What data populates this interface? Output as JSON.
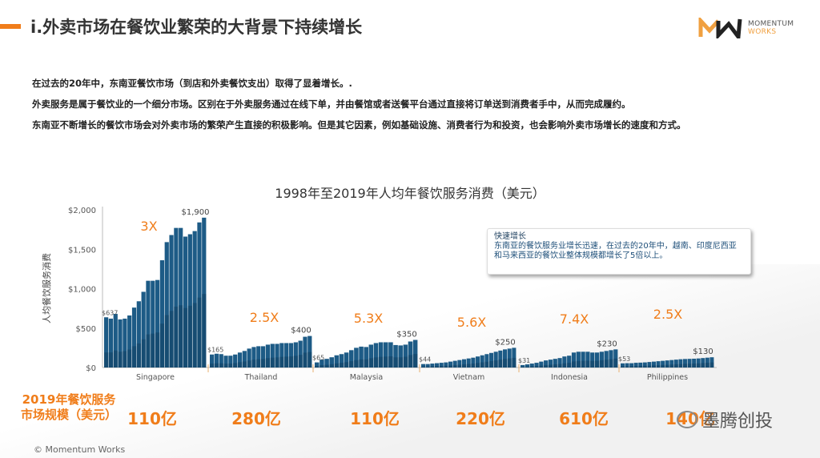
{
  "header": {
    "title": "i.外卖市场在餐饮业繁荣的大背景下持续增长",
    "logo_line1": "MOMENTUM",
    "logo_line2": "WORKS"
  },
  "intro": [
    "在过去的20年中，东南亚餐饮市场（到店和外卖餐饮支出）取得了显着增长。.",
    "外卖服务是属于餐饮业的一个细分市场。区别在于外卖服务通过在线下单，并由餐馆或者送餐平台通过直接将订单送到消费者手中，从而完成履约。",
    "东南亚不断增长的餐饮市场会对外卖市场的繁荣产生直接的积极影响。但是其它因素，例如基础设施、消费者行为和投资，也会影响外卖市场增长的速度和方式。"
  ],
  "callout": {
    "heading": "快速增长",
    "body": "东南亚的餐饮服务业增长迅速，在过去的20年中，越南、印度尼西亚和马来西亚的餐饮业整体规模都增长了5倍以上。"
  },
  "market": {
    "label": "2019年餐饮服务市场规模（美元）",
    "values": [
      "110亿",
      "280亿",
      "110亿",
      "220亿",
      "610亿",
      "140亿"
    ]
  },
  "copyright": "© Momentum Works",
  "watermark": "墨腾创投",
  "chart_data": {
    "type": "bar",
    "title": "1998年至2019年人均年餐饮服务消费（美元）",
    "ylabel": "人均餐饮服务消费",
    "ylim": [
      0,
      2000
    ],
    "yticks": [
      "$0",
      "$500",
      "$1,000",
      "$1,500",
      "$2,000"
    ],
    "ytick_values": [
      0,
      500,
      1000,
      1500,
      2000
    ],
    "bar_color": "#1d5b86",
    "growth_color": "#f07d1a",
    "groups": [
      {
        "category": "Singapore",
        "growth": "3X",
        "start_label": "$637",
        "end_label": "$1,900",
        "values": [
          637,
          620,
          680,
          610,
          620,
          660,
          760,
          840,
          960,
          1100,
          1100,
          1110,
          1360,
          1590,
          1680,
          1770,
          1770,
          1660,
          1690,
          1730,
          1840,
          1900
        ]
      },
      {
        "category": "Thailand",
        "growth": "2.5X",
        "start_label": "$165",
        "end_label": "$400",
        "values": [
          165,
          175,
          170,
          150,
          150,
          165,
          190,
          210,
          240,
          260,
          270,
          270,
          290,
          300,
          300,
          310,
          310,
          310,
          320,
          340,
          390,
          400
        ]
      },
      {
        "category": "Malaysia",
        "growth": "5.3X",
        "start_label": "$65",
        "end_label": "$350",
        "values": [
          65,
          100,
          110,
          130,
          155,
          170,
          190,
          220,
          250,
          265,
          260,
          290,
          310,
          320,
          320,
          320,
          285,
          280,
          290,
          330,
          350
        ]
      },
      {
        "category": "Vietnam",
        "growth": "5.6X",
        "start_label": "$44",
        "end_label": "$250",
        "values": [
          44,
          44,
          50,
          55,
          60,
          65,
          75,
          85,
          95,
          105,
          115,
          125,
          140,
          155,
          170,
          185,
          200,
          215,
          230,
          240,
          250
        ]
      },
      {
        "category": "Indonesia",
        "growth": "7.4X",
        "start_label": "$31",
        "end_label": "$230",
        "values": [
          31,
          40,
          50,
          60,
          75,
          90,
          100,
          110,
          120,
          140,
          150,
          190,
          200,
          200,
          200,
          190,
          190,
          200,
          210,
          220,
          230
        ]
      },
      {
        "category": "Philippines",
        "growth": "2.5X",
        "start_label": "$53",
        "end_label": "$130",
        "values": [
          53,
          55,
          55,
          60,
          62,
          65,
          70,
          75,
          80,
          85,
          90,
          95,
          100,
          105,
          108,
          110,
          112,
          115,
          120,
          125,
          130
        ]
      }
    ]
  }
}
